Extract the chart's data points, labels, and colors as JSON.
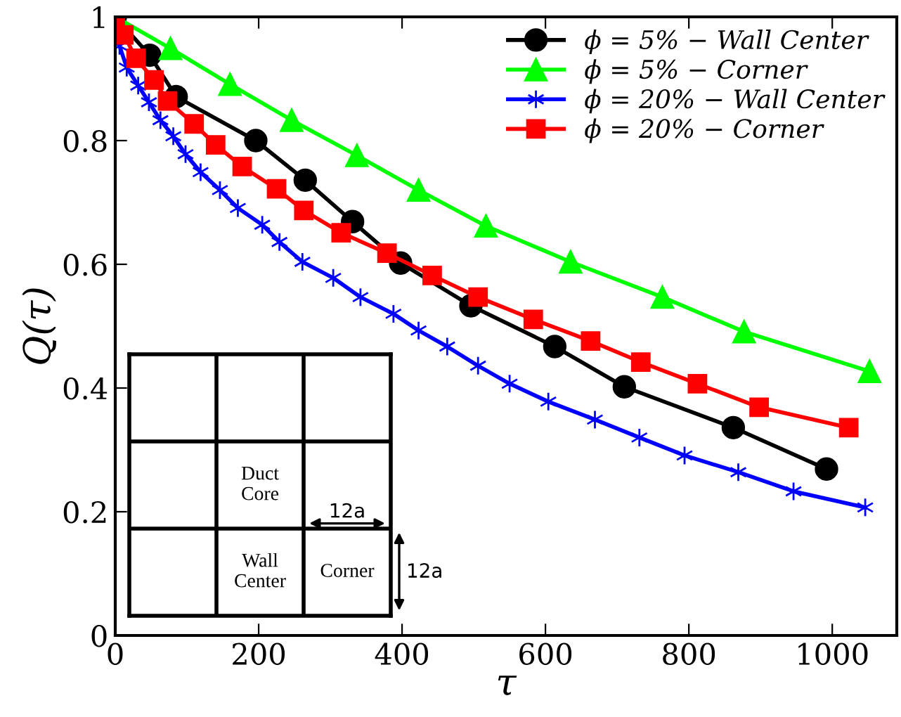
{
  "chart_data": {
    "type": "line",
    "xlabel": "τ",
    "ylabel": "Q(τ)",
    "xlim": [
      0,
      1090
    ],
    "ylim": [
      0,
      1
    ],
    "xticks": [
      0,
      200,
      400,
      600,
      800,
      1000
    ],
    "yticks": [
      0,
      0.2,
      0.4,
      0.6,
      0.8,
      1
    ],
    "legend": "top right",
    "series": [
      {
        "name": "ϕ = 5% − Wall Center",
        "color": "#000000",
        "marker": "circle",
        "x": [
          0,
          48,
          85,
          196,
          265,
          331,
          398,
          496,
          613,
          710,
          862,
          992
        ],
        "values": [
          1.0,
          0.938,
          0.871,
          0.8,
          0.736,
          0.669,
          0.602,
          0.533,
          0.467,
          0.402,
          0.336,
          0.269
        ]
      },
      {
        "name": "ϕ = 5% − Corner",
        "color": "#00ff00",
        "marker": "triangle",
        "x": [
          0,
          77,
          160,
          246,
          337,
          423,
          517,
          635,
          763,
          877,
          1052
        ],
        "values": [
          1.0,
          0.949,
          0.891,
          0.833,
          0.776,
          0.72,
          0.662,
          0.604,
          0.547,
          0.491,
          0.427
        ]
      },
      {
        "name": "ϕ = 20% − Wall Center",
        "color": "#0000ff",
        "marker": "cross",
        "x": [
          0,
          6,
          16,
          32,
          47,
          63,
          81,
          98,
          119,
          146,
          171,
          205,
          229,
          261,
          304,
          342,
          388,
          423,
          463,
          506,
          550,
          604,
          669,
          731,
          794,
          869,
          946,
          1046
        ],
        "values": [
          1.0,
          0.953,
          0.918,
          0.889,
          0.862,
          0.833,
          0.807,
          0.778,
          0.749,
          0.72,
          0.691,
          0.664,
          0.636,
          0.604,
          0.578,
          0.547,
          0.52,
          0.493,
          0.467,
          0.436,
          0.407,
          0.378,
          0.349,
          0.32,
          0.291,
          0.264,
          0.233,
          0.207
        ]
      },
      {
        "name": "ϕ = 20% − Corner",
        "color": "#ff0000",
        "marker": "square",
        "x": [
          0,
          12,
          29,
          54,
          73,
          110,
          140,
          177,
          225,
          263,
          315,
          379,
          442,
          506,
          583,
          663,
          733,
          812,
          898,
          1023
        ],
        "values": [
          1.0,
          0.971,
          0.933,
          0.898,
          0.864,
          0.827,
          0.793,
          0.758,
          0.722,
          0.687,
          0.651,
          0.618,
          0.582,
          0.547,
          0.511,
          0.476,
          0.442,
          0.407,
          0.369,
          0.336
        ]
      }
    ],
    "annotations": [
      "Duct\nCore",
      "Wall\nCenter",
      "Corner",
      "12a",
      "12a"
    ]
  }
}
